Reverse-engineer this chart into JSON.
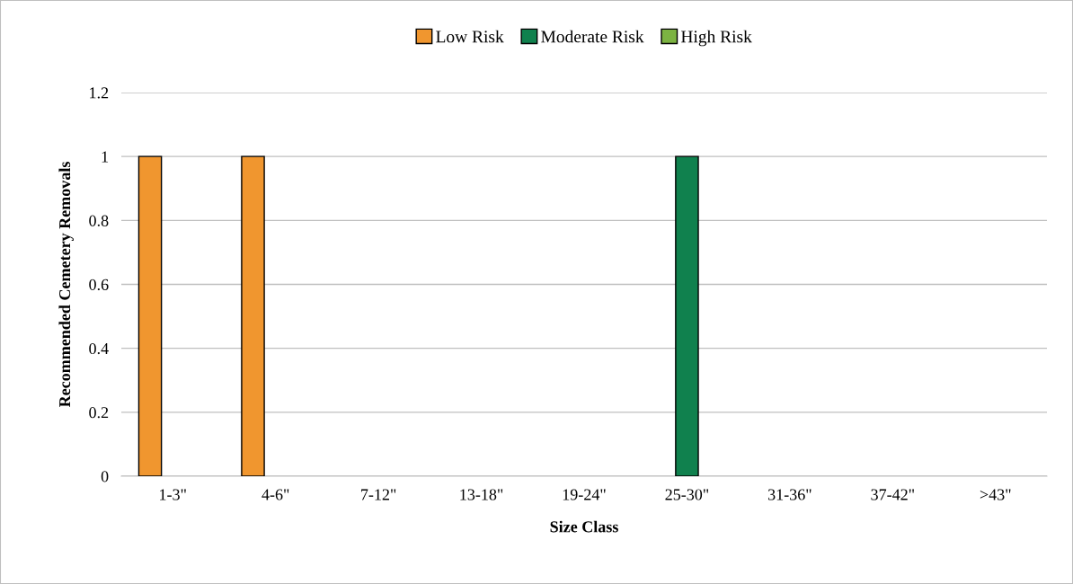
{
  "chart_data": {
    "type": "bar",
    "xlabel": "Size Class",
    "ylabel": "Recommended Cemetery Removals",
    "categories": [
      "1-3\"",
      "4-6\"",
      "7-12\"",
      "13-18\"",
      "19-24\"",
      "25-30\"",
      "31-36\"",
      "37-42\"",
      ">43\""
    ],
    "series": [
      {
        "name": "Low Risk",
        "color": "#f0962f",
        "values": [
          1,
          1,
          0,
          0,
          0,
          0,
          0,
          0,
          0
        ]
      },
      {
        "name": "Moderate Risk",
        "color": "#10814e",
        "values": [
          0,
          0,
          0,
          0,
          0,
          1,
          0,
          0,
          0
        ]
      },
      {
        "name": "High Risk",
        "color": "#7cb342",
        "values": [
          0,
          0,
          0,
          0,
          0,
          0,
          0,
          0,
          0
        ]
      }
    ],
    "ylim": [
      0,
      1.2
    ],
    "yticks": [
      0,
      0.2,
      0.4,
      0.6,
      0.8,
      1,
      1.2
    ],
    "grid": "y",
    "legend": "top"
  }
}
